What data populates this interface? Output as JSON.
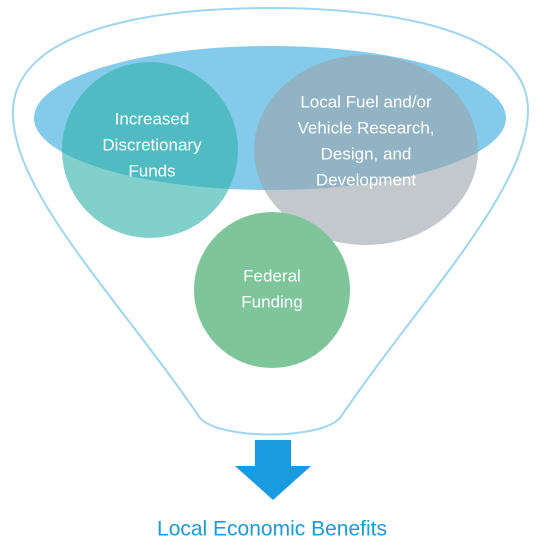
{
  "nodes": [
    {
      "lines": [
        "Increased",
        "Discretionary",
        "Funds"
      ]
    },
    {
      "lines": [
        "Local Fuel and/or",
        "Vehicle Research,",
        "Design, and",
        "Development"
      ]
    },
    {
      "lines": [
        "Federal",
        "Funding"
      ]
    }
  ],
  "outcome": {
    "label": "Local Economic Benefits"
  }
}
